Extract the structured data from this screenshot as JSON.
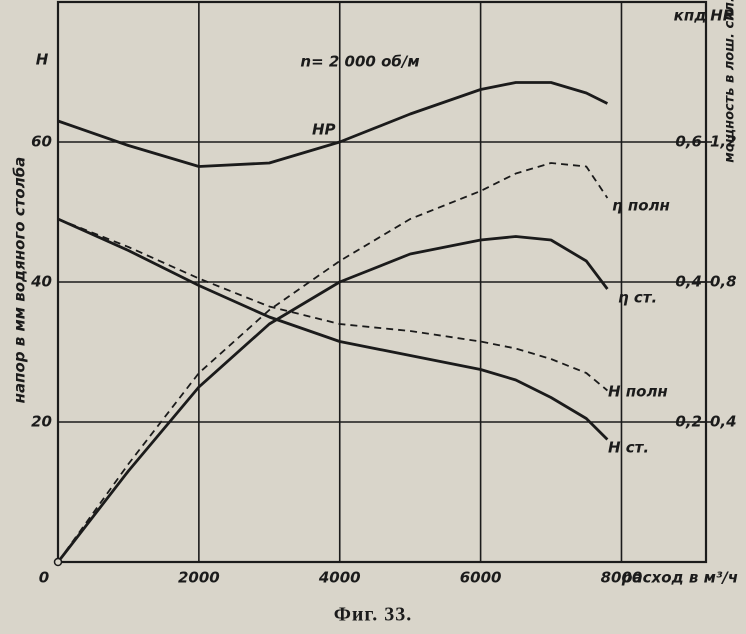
{
  "chart_data": {
    "type": "line",
    "caption": "Фиг. 33.",
    "annotation": "n= 2 000 об/м",
    "y_label": "напор в мм водяного столба",
    "y_axis_title": "H",
    "y2_axis_title": "кпд",
    "y3_axis_title": "HP",
    "y3_label": "мощность в лош. сил.",
    "x_label": "расход в м³/ч",
    "x": [
      0,
      1000,
      2000,
      3000,
      4000,
      5000,
      6000,
      6500,
      7000,
      7500,
      7800
    ],
    "xlim": [
      0,
      9200
    ],
    "xticks": [
      0,
      2000,
      4000,
      6000,
      8000
    ],
    "ylim": [
      0,
      80
    ],
    "yticks": [
      20,
      40,
      60
    ],
    "y2lim": [
      0,
      0.8
    ],
    "y2ticks": [
      {
        "value": 0.2,
        "label": "0,2"
      },
      {
        "value": 0.4,
        "label": "0,4"
      },
      {
        "value": 0.6,
        "label": "0,6"
      }
    ],
    "y3lim": [
      0,
      1.6
    ],
    "y3ticks": [
      {
        "value": 0.4,
        "label": "0,4"
      },
      {
        "value": 0.8,
        "label": "0,8"
      },
      {
        "value": 1.2,
        "label": "1,2"
      }
    ],
    "grid": true,
    "series": [
      {
        "name": "HP",
        "color": "#1b1b1b",
        "style": "solid",
        "axis": "y3",
        "values": [
          1.26,
          1.19,
          1.13,
          1.14,
          1.2,
          1.28,
          1.35,
          1.37,
          1.37,
          1.34,
          1.31
        ]
      },
      {
        "name": "η полн",
        "color": "#1b1b1b",
        "style": "dashed",
        "axis": "y2",
        "values": [
          0,
          0.14,
          0.27,
          0.36,
          0.43,
          0.49,
          0.53,
          0.555,
          0.57,
          0.565,
          0.52
        ]
      },
      {
        "name": "η ст.",
        "color": "#1b1b1b",
        "style": "solid",
        "axis": "y2",
        "values": [
          0,
          0.13,
          0.25,
          0.34,
          0.4,
          0.44,
          0.46,
          0.465,
          0.46,
          0.43,
          0.39
        ]
      },
      {
        "name": "H полн",
        "color": "#1b1b1b",
        "style": "dashed",
        "values": [
          49,
          45,
          40.5,
          36.5,
          34,
          33,
          31.5,
          30.5,
          29,
          27,
          24.5
        ]
      },
      {
        "name": "H ст.",
        "color": "#1b1b1b",
        "style": "solid",
        "values": [
          49,
          44.5,
          39.5,
          35,
          31.5,
          29.5,
          27.5,
          26,
          23.5,
          20.5,
          17.5
        ]
      }
    ]
  }
}
